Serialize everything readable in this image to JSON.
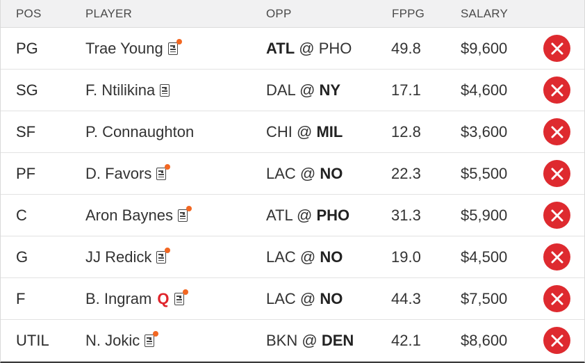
{
  "header": {
    "pos": "POS",
    "player": "PLAYER",
    "opp": "OPP",
    "fppg": "FPPG",
    "salary": "SALARY"
  },
  "icons": {
    "news": "news-icon",
    "alert_dot": "orange-dot",
    "remove": "remove-x-icon"
  },
  "colors": {
    "remove_bg": "#de2a2f",
    "alert_dot": "#f26722",
    "questionable": "#e0242b",
    "header_bg": "#f1f1f2"
  },
  "rows": [
    {
      "pos": "PG",
      "player": "Trae Young",
      "status": "",
      "news": true,
      "alert": true,
      "opp_away": "ATL",
      "opp_sep": " @ ",
      "opp_home": "PHO",
      "bold_side": "away",
      "fppg": "49.8",
      "salary": "$9,600"
    },
    {
      "pos": "SG",
      "player": "F. Ntilikina",
      "status": "",
      "news": true,
      "alert": false,
      "opp_away": "DAL",
      "opp_sep": " @ ",
      "opp_home": "NY",
      "bold_side": "home",
      "fppg": "17.1",
      "salary": "$4,600"
    },
    {
      "pos": "SF",
      "player": "P. Connaughton",
      "status": "",
      "news": false,
      "alert": false,
      "opp_away": "CHI",
      "opp_sep": " @ ",
      "opp_home": "MIL",
      "bold_side": "home",
      "fppg": "12.8",
      "salary": "$3,600"
    },
    {
      "pos": "PF",
      "player": "D. Favors",
      "status": "",
      "news": true,
      "alert": true,
      "opp_away": "LAC",
      "opp_sep": " @ ",
      "opp_home": "NO",
      "bold_side": "home",
      "fppg": "22.3",
      "salary": "$5,500"
    },
    {
      "pos": "C",
      "player": "Aron Baynes",
      "status": "",
      "news": true,
      "alert": true,
      "opp_away": "ATL",
      "opp_sep": " @ ",
      "opp_home": "PHO",
      "bold_side": "home",
      "fppg": "31.3",
      "salary": "$5,900"
    },
    {
      "pos": "G",
      "player": "JJ Redick",
      "status": "",
      "news": true,
      "alert": true,
      "opp_away": "LAC",
      "opp_sep": " @ ",
      "opp_home": "NO",
      "bold_side": "home",
      "fppg": "19.0",
      "salary": "$4,500"
    },
    {
      "pos": "F",
      "player": "B. Ingram",
      "status": "Q",
      "news": true,
      "alert": true,
      "opp_away": "LAC",
      "opp_sep": " @ ",
      "opp_home": "NO",
      "bold_side": "home",
      "fppg": "44.3",
      "salary": "$7,500"
    },
    {
      "pos": "UTIL",
      "player": "N. Jokic",
      "status": "",
      "news": true,
      "alert": true,
      "opp_away": "BKN",
      "opp_sep": " @ ",
      "opp_home": "DEN",
      "bold_side": "home",
      "fppg": "42.1",
      "salary": "$8,600"
    }
  ]
}
